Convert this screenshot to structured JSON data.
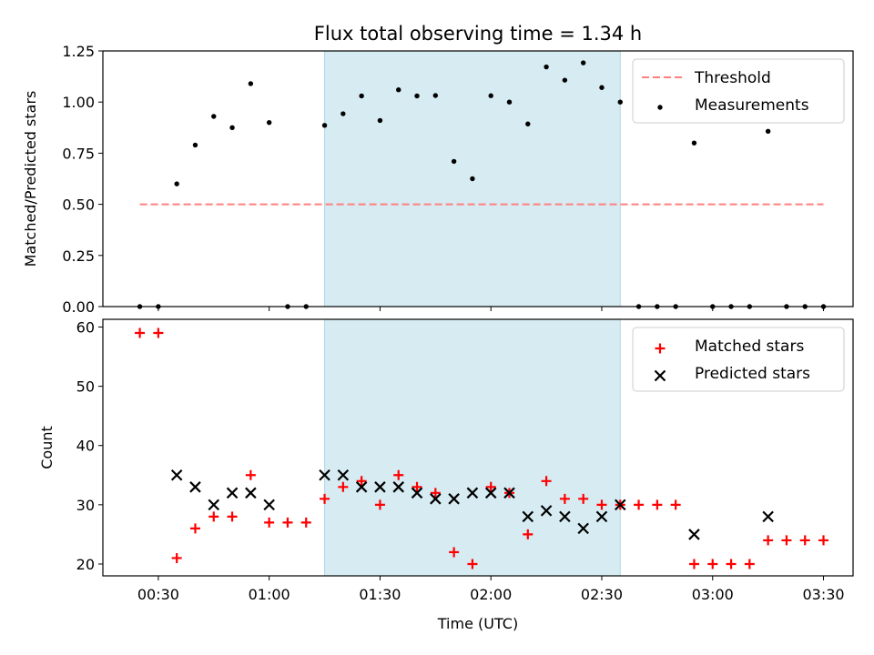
{
  "chart_data": {
    "title": "Flux total observing time = 1.34 h",
    "xlabel": "Time (UTC)",
    "x_tick_labels": [
      "00:30",
      "01:00",
      "01:30",
      "02:00",
      "02:30",
      "03:00",
      "03:30"
    ],
    "x_ticks_minutes": [
      30,
      60,
      90,
      120,
      150,
      180,
      210
    ],
    "xlim_minutes": [
      15,
      218
    ],
    "shaded_span_minutes": [
      75,
      155
    ],
    "shade_color": "#add8e6",
    "panels": [
      {
        "type": "scatter",
        "ylabel": "Matched/Predicted stars",
        "ylim": [
          0,
          1.25
        ],
        "y_ticks": [
          0,
          0.25,
          0.5,
          0.75,
          1.0,
          1.25
        ],
        "y_tick_labels": [
          "0.00",
          "0.25",
          "0.50",
          "0.75",
          "1.00",
          "1.25"
        ],
        "legend_position": "top-right",
        "threshold": {
          "name": "Threshold",
          "value": 0.5,
          "x_range_minutes": [
            25,
            210
          ],
          "color": "#ff7f7f"
        },
        "series": [
          {
            "name": "Measurements",
            "color": "#000000",
            "marker": "dot",
            "x_minutes": [
              25,
              30,
              35,
              40,
              45,
              50,
              55,
              60,
              65,
              70,
              75,
              80,
              85,
              90,
              95,
              100,
              105,
              110,
              115,
              120,
              125,
              130,
              135,
              140,
              145,
              150,
              155,
              160,
              165,
              170,
              175,
              180,
              185,
              190,
              195,
              200,
              205,
              210
            ],
            "values": [
              0,
              0,
              0.6,
              0.79,
              0.93,
              0.875,
              1.09,
              0.9,
              0,
              0,
              0.886,
              0.943,
              1.03,
              0.91,
              1.06,
              1.03,
              1.032,
              0.71,
              0.625,
              1.031,
              1.0,
              0.893,
              1.172,
              1.107,
              1.192,
              1.071,
              1.0,
              0,
              0,
              0,
              0.8,
              0,
              0,
              0,
              0.857,
              0,
              0,
              0
            ]
          }
        ]
      },
      {
        "type": "scatter",
        "ylabel": "Count",
        "ylim": [
          18,
          61.3
        ],
        "y_ticks": [
          20,
          30,
          40,
          50,
          60
        ],
        "y_tick_labels": [
          "20",
          "30",
          "40",
          "50",
          "60"
        ],
        "legend_position": "top-right",
        "series": [
          {
            "name": "Matched stars",
            "color": "#ff0000",
            "marker": "plus",
            "x_minutes": [
              25,
              30,
              35,
              40,
              45,
              50,
              55,
              60,
              65,
              70,
              75,
              80,
              85,
              90,
              95,
              100,
              105,
              110,
              115,
              120,
              125,
              130,
              135,
              140,
              145,
              150,
              155,
              160,
              165,
              170,
              175,
              180,
              185,
              190,
              195,
              200,
              205,
              210
            ],
            "values": [
              59,
              59,
              21,
              26,
              28,
              28,
              35,
              27,
              27,
              27,
              31,
              33,
              34,
              30,
              35,
              33,
              32,
              22,
              20,
              33,
              32,
              25,
              34,
              31,
              31,
              30,
              30,
              30,
              30,
              30,
              20,
              20,
              20,
              20,
              24,
              24,
              24,
              24
            ]
          },
          {
            "name": "Predicted stars",
            "color": "#000000",
            "marker": "x",
            "x_minutes": [
              35,
              40,
              45,
              50,
              55,
              60,
              75,
              80,
              85,
              90,
              95,
              100,
              105,
              110,
              115,
              120,
              125,
              130,
              135,
              140,
              145,
              150,
              155,
              175,
              195
            ],
            "values": [
              35,
              33,
              30,
              32,
              32,
              30,
              35,
              35,
              33,
              33,
              33,
              32,
              31,
              31,
              32,
              32,
              32,
              28,
              29,
              28,
              26,
              28,
              30,
              25,
              28
            ]
          }
        ]
      }
    ]
  }
}
